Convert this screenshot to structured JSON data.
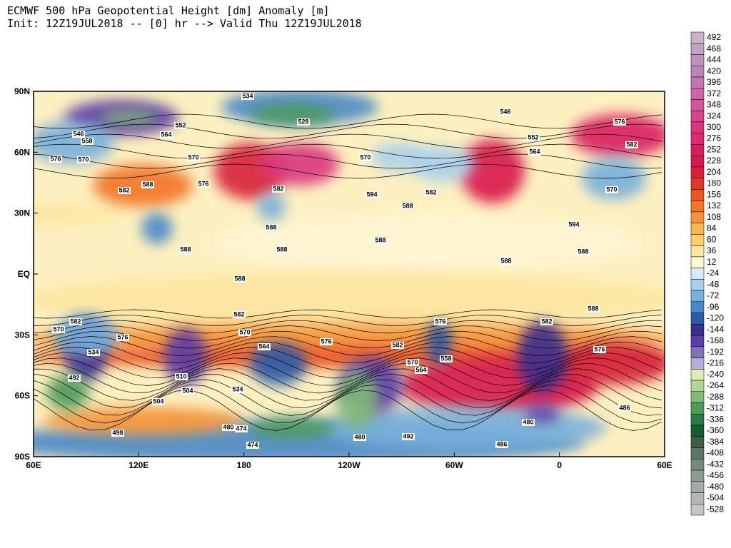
{
  "header": {
    "line1": "ECMWF 500 hPa Geopotential Height [dm] Anomaly [m]",
    "line2": "Init: 12Z19JUL2018 -- [0] hr --> Valid Thu 12Z19JUL2018"
  },
  "map": {
    "lat_labels": [
      "90N",
      "60N",
      "30N",
      "EQ",
      "30S",
      "60S",
      "90S"
    ],
    "lon_labels": [
      "60E",
      "120E",
      "180",
      "120W",
      "60W",
      "0",
      "60E"
    ],
    "contour_labels": [
      "534",
      "528",
      "576",
      "582",
      "546",
      "570",
      "576",
      "582",
      "588",
      "576",
      "570",
      "564",
      "552",
      "546",
      "558",
      "582",
      "588",
      "588",
      "588",
      "588",
      "588",
      "582",
      "570",
      "564",
      "576",
      "582",
      "576",
      "570",
      "564",
      "558",
      "588",
      "594",
      "588",
      "582",
      "588",
      "576",
      "582",
      "570",
      "576",
      "534",
      "492",
      "510",
      "504",
      "504",
      "498",
      "534",
      "480",
      "474",
      "474",
      "480",
      "492",
      "486",
      "486",
      "480",
      "552",
      "564",
      "570",
      "594",
      "588",
      "582",
      "570"
    ]
  },
  "colorbar": {
    "labels": [
      "492",
      "468",
      "444",
      "420",
      "396",
      "372",
      "348",
      "324",
      "300",
      "276",
      "252",
      "228",
      "204",
      "180",
      "156",
      "132",
      "108",
      "84",
      "60",
      "36",
      "12",
      "-24",
      "-48",
      "-72",
      "-96",
      "-120",
      "-144",
      "-168",
      "-192",
      "-216",
      "-240",
      "-264",
      "-288",
      "-312",
      "-336",
      "-360",
      "-384",
      "-408",
      "-432",
      "-456",
      "-480",
      "-504",
      "-528"
    ],
    "colors": [
      "#c9b3c9",
      "#c2a2c2",
      "#bc92bc",
      "#b886b8",
      "#c276b0",
      "#cc66a6",
      "#d2559c",
      "#d84490",
      "#dc3480",
      "#de2870",
      "#dc1c60",
      "#d8184c",
      "#d8203a",
      "#e03828",
      "#ea5520",
      "#f27428",
      "#f79438",
      "#fab450",
      "#fcd070",
      "#fde6a0",
      "#fff6d6",
      "#d6eaf8",
      "#a8d0ec",
      "#78b0dc",
      "#4a88c8",
      "#2c5ca8",
      "#3a2e90",
      "#5c3ca6",
      "#8272bc",
      "#b6acd8",
      "#dcecb4",
      "#b0d698",
      "#80ba7a",
      "#4e9a58",
      "#2c7a44",
      "#185c34",
      "#3e5e4c",
      "#5c7464",
      "#768a7c",
      "#8c9c92",
      "#a0aca4",
      "#b2b8b4",
      "#c4c4c4"
    ]
  }
}
